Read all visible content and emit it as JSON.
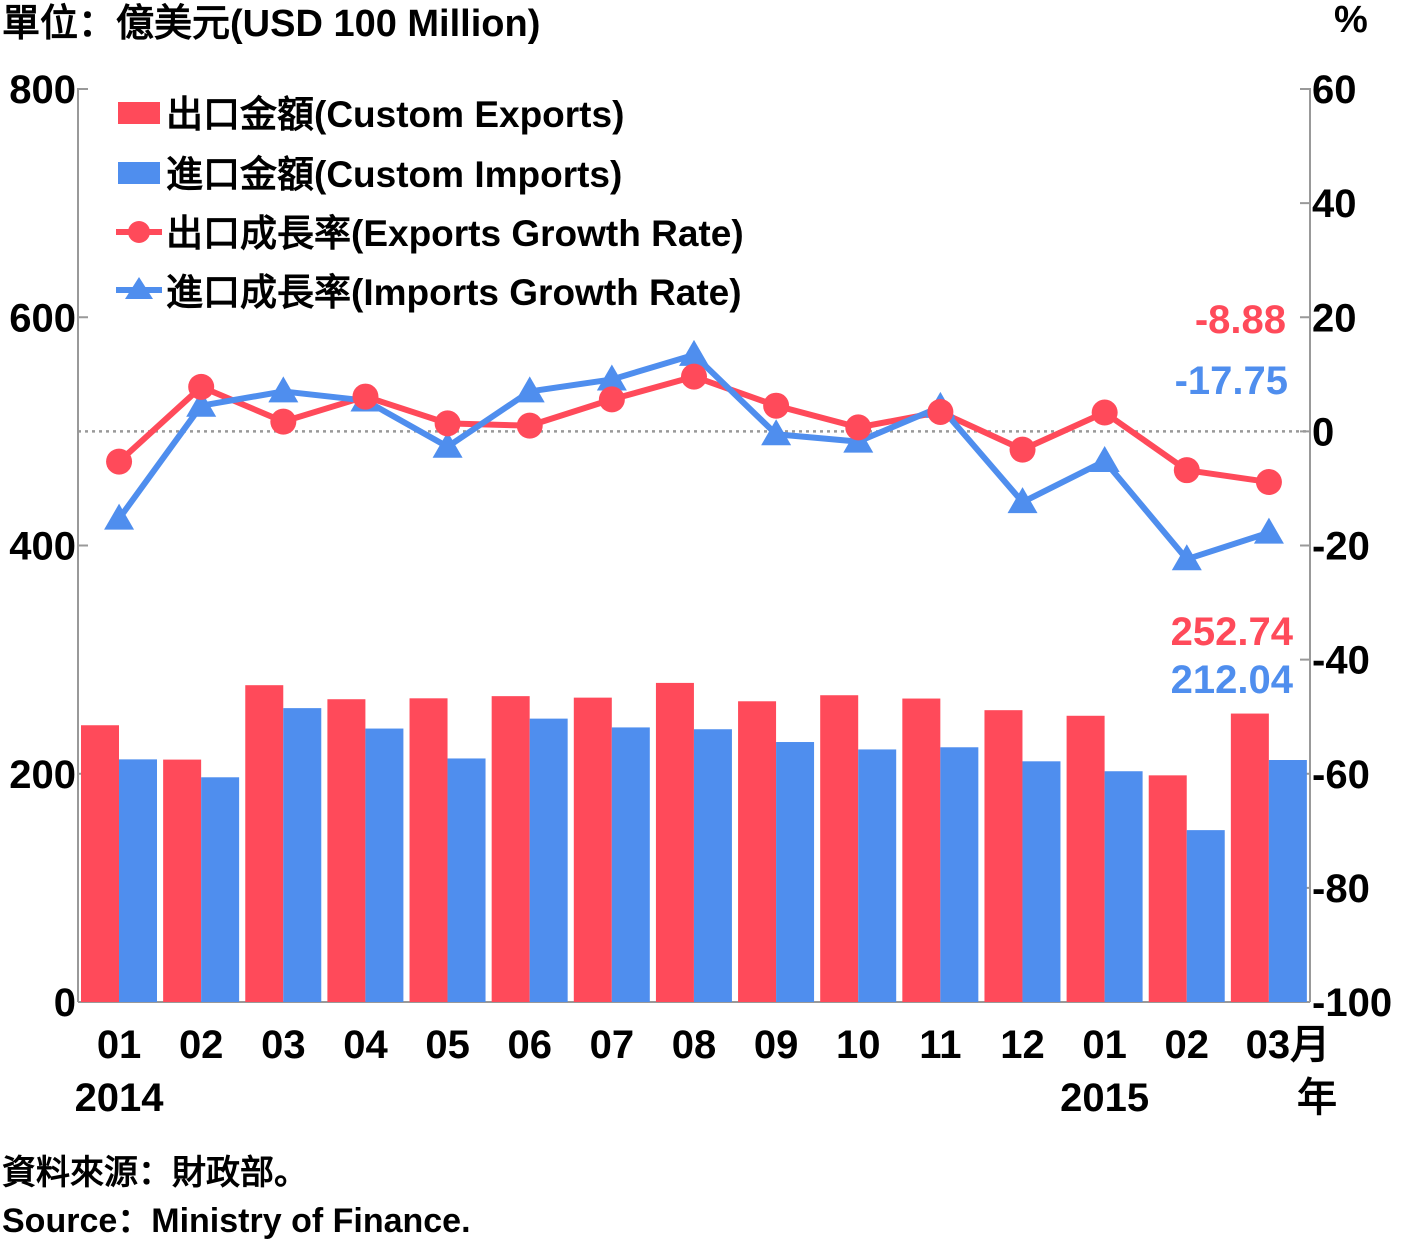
{
  "chart_data": {
    "type": "bar",
    "unit_label": "單位：億美元(USD 100 Million)",
    "right_unit": "%",
    "categories": [
      "01",
      "02",
      "03",
      "04",
      "05",
      "06",
      "07",
      "08",
      "09",
      "10",
      "11",
      "12",
      "01",
      "02",
      "03"
    ],
    "x_suffix_top": "月",
    "x_suffix_bottom": "年",
    "year_labels": [
      {
        "index": 0,
        "label": "2014"
      },
      {
        "index": 12,
        "label": "2015"
      }
    ],
    "y_left": {
      "min": 0,
      "max": 800,
      "ticks": [
        "0",
        "200",
        "400",
        "600",
        "800"
      ]
    },
    "y_right": {
      "min": -100,
      "max": 60,
      "ticks": [
        "-100",
        "-80",
        "-60",
        "-40",
        "-20",
        "0",
        "20",
        "40",
        "60"
      ]
    },
    "zero_line": true,
    "legend_position": "top-left",
    "series": [
      {
        "name": "出口金額(Custom Exports)",
        "kind": "bar",
        "axis": "left",
        "color": "#ff4a5a",
        "values": [
          242.5,
          212.4,
          277.6,
          265.3,
          266.1,
          268.0,
          266.7,
          279.6,
          263.5,
          268.8,
          265.9,
          255.7,
          250.8,
          198.6,
          252.74
        ]
      },
      {
        "name": "進口金額(Custom Imports)",
        "kind": "bar",
        "axis": "left",
        "color": "#4f8eee",
        "values": [
          212.6,
          196.9,
          257.5,
          239.6,
          213.4,
          248.3,
          240.6,
          239.0,
          227.8,
          221.3,
          223.2,
          210.9,
          202.2,
          150.6,
          212.04
        ]
      },
      {
        "name": "出口成長率(Exports Growth Rate)",
        "kind": "line",
        "marker": "circle",
        "axis": "right",
        "color": "#ff4a5a",
        "values": [
          -5.3,
          7.8,
          1.7,
          6.1,
          1.4,
          1.0,
          5.6,
          9.6,
          4.5,
          0.7,
          3.4,
          -3.2,
          3.3,
          -6.8,
          -8.88
        ]
      },
      {
        "name": "進口成長率(Imports Growth Rate)",
        "kind": "line",
        "marker": "triangle",
        "axis": "right",
        "color": "#4f8eee",
        "values": [
          -15.3,
          4.5,
          7.0,
          5.4,
          -2.7,
          7.0,
          9.1,
          13.4,
          -0.5,
          -1.8,
          4.3,
          -12.4,
          -5.2,
          -22.4,
          -17.75
        ]
      }
    ],
    "annotations": [
      {
        "text": "-8.88",
        "color": "#ff4a5a",
        "anchor": "last-export-rate"
      },
      {
        "text": "-17.75",
        "color": "#4f8eee",
        "anchor": "last-import-rate"
      },
      {
        "text": "252.74",
        "color": "#ff4a5a",
        "anchor": "last-export-bar"
      },
      {
        "text": "212.04",
        "color": "#4f8eee",
        "anchor": "last-import-bar"
      }
    ]
  },
  "source_zh": "資料來源：財政部。",
  "source_en": "Source：Ministry of Finance."
}
